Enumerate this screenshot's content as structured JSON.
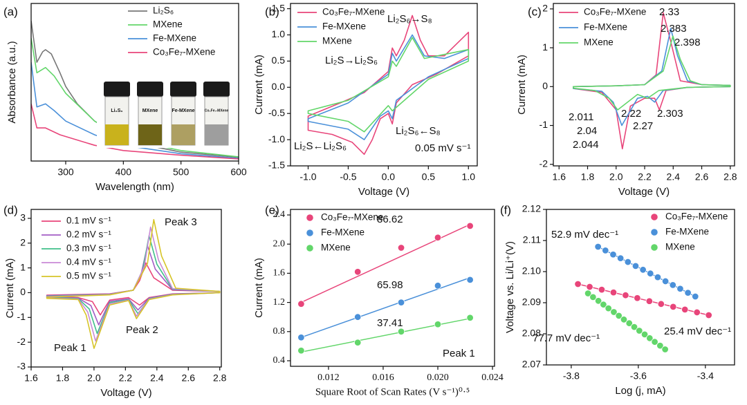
{
  "chart_data": [
    {
      "type": "line",
      "panel_label": "(a)",
      "xlabel": "Wavelength (nm)",
      "ylabel": "Absorbance (a.u.)",
      "xlim": [
        240,
        600
      ],
      "xticks": [
        300,
        400,
        500,
        600
      ],
      "ylim": [
        0,
        3
      ],
      "inset_labels": [
        "Li₂S₆",
        "MXene",
        "Fe-MXene",
        "Co₃Fe₇-MXene"
      ],
      "series": [
        {
          "name": "Li₂S₆",
          "color": "#777777",
          "x": [
            240,
            250,
            260,
            265,
            275,
            290,
            300,
            320,
            350,
            400,
            450,
            500,
            600
          ],
          "values": [
            2.67,
            1.88,
            2.08,
            2.12,
            2.04,
            1.68,
            1.42,
            1.09,
            0.76,
            0.43,
            0.28,
            0.17,
            0.07
          ]
        },
        {
          "name": "MXene",
          "color": "#62d66a",
          "x": [
            240,
            250,
            265,
            280,
            300,
            350,
            400,
            500,
            600
          ],
          "values": [
            2.34,
            1.68,
            1.78,
            1.62,
            1.29,
            0.76,
            0.43,
            0.2,
            0.08
          ]
        },
        {
          "name": "Fe-MXene",
          "color": "#4a90d9",
          "x": [
            240,
            250,
            265,
            280,
            300,
            350,
            400,
            500,
            600
          ],
          "values": [
            1.88,
            1.03,
            1.09,
            0.96,
            0.76,
            0.5,
            0.3,
            0.14,
            0.05
          ]
        },
        {
          "name": "Co₃Fe₇-MXene",
          "color": "#e8457a",
          "x": [
            240,
            250,
            265,
            290,
            350,
            400,
            500,
            600
          ],
          "values": [
            1.09,
            0.63,
            0.63,
            0.5,
            0.3,
            0.2,
            0.11,
            0.04
          ]
        }
      ]
    },
    {
      "type": "line",
      "panel_label": "(b)",
      "xlabel": "Voltage (V)",
      "ylabel": "Current (mA)",
      "xlim": [
        -1.22,
        1.11
      ],
      "xticks": [
        {
          "value": -1.0,
          "label": "-1.0"
        },
        -0.5,
        {
          "value": 0,
          "label": "0.0"
        },
        0.5,
        {
          "value": 1.0,
          "label": "1.0"
        }
      ],
      "ylim": [
        -1.5,
        1.6
      ],
      "yticks": [
        -1.5,
        {
          "value": -1.0,
          "label": "-1.0"
        },
        -0.5,
        {
          "value": 0,
          "label": "0.0"
        },
        0.5,
        {
          "value": 1.0,
          "label": "1.0"
        },
        1.5
      ],
      "annotations": [
        {
          "text": "Li₂S₆→S₈",
          "color": "#111111"
        },
        {
          "text": "Li₂S→Li₂S₆",
          "color": "#111111"
        },
        {
          "text": "Li₂S₆←S₈",
          "color": "#111111"
        },
        {
          "text": "Li₂S←Li₂S₆",
          "color": "#111111"
        },
        {
          "text": "0.05 mV s⁻¹",
          "color": "#111111"
        }
      ],
      "series": [
        {
          "name": "Co₃Fe₇-MXene",
          "color": "#e8457a",
          "x": [
            -1,
            -0.6,
            -0.3,
            0,
            0.05,
            0.1,
            0.2,
            0.3,
            0.4,
            0.5,
            0.7,
            1,
            1,
            0.6,
            0.3,
            0.1,
            0.05,
            0,
            -0.1,
            -0.2,
            -0.3,
            -0.45,
            -0.7,
            -1
          ],
          "values": [
            -0.55,
            -0.3,
            -0.1,
            0.3,
            0.75,
            0.6,
            0.9,
            1.37,
            0.9,
            0.6,
            0.6,
            1.05,
            0.6,
            0.25,
            0.05,
            -0.3,
            -0.7,
            -0.5,
            -0.6,
            -1.0,
            -1.28,
            -1.05,
            -0.9,
            -0.82
          ]
        },
        {
          "name": "Fe-MXene",
          "color": "#4a90d9",
          "x": [
            -1,
            -0.5,
            0,
            0.05,
            0.1,
            0.3,
            0.45,
            0.7,
            1,
            1,
            0.5,
            0.1,
            0.05,
            0,
            -0.1,
            -0.3,
            -0.5,
            -1
          ],
          "values": [
            -0.6,
            -0.3,
            0.25,
            0.65,
            0.5,
            1.0,
            0.6,
            0.55,
            0.72,
            0.55,
            0.2,
            -0.25,
            -0.6,
            -0.45,
            -0.55,
            -1.0,
            -0.8,
            -0.65
          ]
        },
        {
          "name": "MXene",
          "color": "#62d66a",
          "x": [
            -1,
            -0.5,
            0,
            0.05,
            0.1,
            0.3,
            0.45,
            1,
            1,
            0.5,
            0.05,
            0,
            -0.3,
            -0.5,
            -1
          ],
          "values": [
            -0.45,
            -0.25,
            0.2,
            0.5,
            0.4,
            0.95,
            0.55,
            0.72,
            0.5,
            0.15,
            -0.45,
            -0.35,
            -0.85,
            -0.65,
            -0.5
          ]
        }
      ]
    },
    {
      "type": "line",
      "panel_label": "(c)",
      "xlabel": "Voltage (V)",
      "ylabel": "Current (mA)",
      "xlim": [
        1.56,
        2.83
      ],
      "xticks": [
        1.6,
        1.8,
        {
          "value": 2.0,
          "label": "2.0"
        },
        2.2,
        2.4,
        2.6,
        2.8
      ],
      "ylim": [
        -2.04,
        2.14
      ],
      "yticks": [
        -2,
        -1,
        0,
        1,
        2
      ],
      "annotations": [
        {
          "text": "2.33",
          "color": "#e8457a"
        },
        {
          "text": "2.383",
          "color": "#4a90d9"
        },
        {
          "text": "2.398",
          "color": "#62d66a"
        },
        {
          "text": "2.011",
          "color": "#62d66a"
        },
        {
          "text": "2.22",
          "color": "#62d66a"
        },
        {
          "text": "2.303",
          "color": "#e8457a"
        },
        {
          "text": "2.04",
          "color": "#4a90d9"
        },
        {
          "text": "2.27",
          "color": "#4a90d9"
        },
        {
          "text": "2.044",
          "color": "#e8457a"
        }
      ],
      "series": [
        {
          "name": "Co₃Fe₇-MXene",
          "color": "#e8457a",
          "x": [
            1.7,
            2.0,
            2.2,
            2.28,
            2.33,
            2.38,
            2.45,
            2.6,
            2.8,
            2.8,
            2.5,
            2.35,
            2.303,
            2.27,
            2.2,
            2.1,
            2.044,
            2.0,
            1.9,
            1.7
          ],
          "values": [
            0,
            0.02,
            0.05,
            0.3,
            1.9,
            1.2,
            0.15,
            0.05,
            0.03,
            0,
            -0.02,
            -0.1,
            -0.6,
            -0.3,
            -0.3,
            -0.5,
            -1.6,
            -0.6,
            -0.15,
            -0.05
          ]
        },
        {
          "name": "Fe-MXene",
          "color": "#4a90d9",
          "x": [
            1.7,
            2.0,
            2.2,
            2.32,
            2.383,
            2.43,
            2.5,
            2.6,
            2.8,
            2.8,
            2.5,
            2.33,
            2.27,
            2.22,
            2.15,
            2.04,
            1.98,
            1.9,
            1.7
          ],
          "values": [
            0,
            0.02,
            0.05,
            0.4,
            1.5,
            0.8,
            0.15,
            0.05,
            0.03,
            0,
            -0.02,
            -0.1,
            -0.4,
            -0.25,
            -0.3,
            -1.0,
            -0.4,
            -0.12,
            -0.05
          ]
        },
        {
          "name": "MXene",
          "color": "#62d66a",
          "x": [
            1.7,
            2.0,
            2.2,
            2.33,
            2.398,
            2.45,
            2.52,
            2.6,
            2.8,
            2.8,
            2.5,
            2.3,
            2.22,
            2.15,
            2.011,
            1.95,
            1.85,
            1.7
          ],
          "values": [
            0,
            0.02,
            0.05,
            0.4,
            1.3,
            0.7,
            0.15,
            0.05,
            0.03,
            0,
            -0.02,
            -0.1,
            -0.3,
            -0.2,
            -0.6,
            -0.3,
            -0.1,
            -0.04
          ]
        }
      ]
    },
    {
      "type": "line",
      "panel_label": "(d)",
      "xlabel": "Voltage (V)",
      "ylabel": "Current (mA)",
      "xlim": [
        1.6,
        2.81
      ],
      "xticks": [
        1.6,
        1.8,
        {
          "value": 2.0,
          "label": "2.0"
        },
        2.2,
        2.4,
        2.6,
        2.8
      ],
      "ylim": [
        -3,
        3.36
      ],
      "yticks": [
        -3,
        -2,
        -1,
        0,
        1,
        2,
        3
      ],
      "annotations": [
        {
          "text": "Peak 3",
          "color": "#111111"
        },
        {
          "text": "Peak 2",
          "color": "#111111"
        },
        {
          "text": "Peak 1",
          "color": "#111111"
        }
      ],
      "series": [
        {
          "name": "0.1 mV s⁻¹",
          "color": "#e8457a",
          "x": [
            1.7,
            2.1,
            2.25,
            2.29,
            2.33,
            2.38,
            2.5,
            2.8,
            2.8,
            2.5,
            2.35,
            2.29,
            2.22,
            2.1,
            2.04,
            1.99,
            1.9,
            1.7
          ],
          "values": [
            -0.1,
            -0.05,
            0.1,
            0.48,
            1.2,
            0.6,
            0.1,
            0.05,
            0,
            -0.05,
            -0.2,
            -0.5,
            -0.2,
            -0.3,
            -0.9,
            -0.36,
            -0.2,
            -0.15
          ]
        },
        {
          "name": "0.2 mV s⁻¹",
          "color": "#a25bc4",
          "x": [
            1.7,
            2.1,
            2.25,
            2.3,
            2.34,
            2.39,
            2.5,
            2.8,
            2.8,
            2.5,
            2.35,
            2.28,
            2.22,
            2.1,
            2.03,
            1.98,
            1.9,
            1.7
          ],
          "values": [
            -0.12,
            -0.06,
            0.1,
            0.76,
            1.9,
            0.95,
            0.12,
            0.05,
            0,
            -0.06,
            -0.22,
            -0.7,
            -0.25,
            -0.35,
            -1.3,
            -0.52,
            -0.22,
            -0.17
          ]
        },
        {
          "name": "0.3 mV s⁻¹",
          "color": "#3fbf8a",
          "x": [
            1.7,
            2.1,
            2.25,
            2.31,
            2.35,
            2.4,
            2.5,
            2.8,
            2.8,
            2.5,
            2.35,
            2.28,
            2.22,
            2.1,
            2.02,
            1.97,
            1.9,
            1.7
          ],
          "values": [
            -0.14,
            -0.07,
            0.1,
            0.92,
            2.3,
            1.15,
            0.14,
            0.05,
            0,
            -0.07,
            -0.24,
            -0.85,
            -0.28,
            -0.4,
            -1.65,
            -0.66,
            -0.24,
            -0.19
          ]
        },
        {
          "name": "0.4 mV s⁻¹",
          "color": "#c98ad6",
          "x": [
            1.7,
            2.1,
            2.25,
            2.32,
            2.36,
            2.41,
            2.5,
            2.8,
            2.8,
            2.5,
            2.35,
            2.27,
            2.22,
            2.1,
            2.01,
            1.96,
            1.9,
            1.7
          ],
          "values": [
            -0.16,
            -0.08,
            0.1,
            1.06,
            2.65,
            1.32,
            0.16,
            0.05,
            0,
            -0.08,
            -0.26,
            -0.95,
            -0.3,
            -0.45,
            -1.95,
            -0.78,
            -0.26,
            -0.21
          ]
        },
        {
          "name": "0.5 mV s⁻¹",
          "color": "#d6c428",
          "x": [
            1.7,
            2.1,
            2.25,
            2.34,
            2.38,
            2.43,
            2.52,
            2.8,
            2.8,
            2.5,
            2.35,
            2.27,
            2.22,
            2.1,
            2.0,
            1.95,
            1.9,
            1.7
          ],
          "values": [
            -0.18,
            -0.09,
            0.1,
            1.18,
            2.95,
            1.48,
            0.18,
            0.05,
            0,
            -0.09,
            -0.28,
            -1.05,
            -0.32,
            -0.5,
            -2.25,
            -0.9,
            -0.28,
            -0.23
          ]
        }
      ]
    },
    {
      "type": "scatter",
      "panel_label": "(e)",
      "xlabel": "Square Root of Scan Rates (V s⁻¹)⁰·⁵",
      "ylabel": "Current (mA)",
      "xlim": [
        0.00922,
        0.02415
      ],
      "xticks": [
        0.012,
        0.016,
        {
          "value": 0.02,
          "label": "0.020"
        },
        0.024
      ],
      "ylim": [
        0.324,
        2.476
      ],
      "yticks": [
        0.4,
        0.8,
        1.2,
        1.6,
        {
          "value": 2.0,
          "label": "2.0"
        },
        2.4
      ],
      "x": [
        0.01,
        0.01414,
        0.01732,
        0.02,
        0.02236
      ],
      "fit_x": [
        0.01,
        0.02236
      ],
      "annotations": [
        {
          "text": "86.62",
          "color": "#e8457a"
        },
        {
          "text": "65.98",
          "color": "#4a90d9"
        },
        {
          "text": "37.41",
          "color": "#62d66a"
        },
        {
          "text": "Peak 1",
          "color": "#111111"
        }
      ],
      "series": [
        {
          "name": "Co₃Fe₇-MXene",
          "color": "#e8457a",
          "values": [
            1.18,
            1.62,
            1.95,
            2.09,
            2.25
          ],
          "fit": [
            1.2,
            2.27
          ]
        },
        {
          "name": "Fe-MXene",
          "color": "#4a90d9",
          "values": [
            0.72,
            1.0,
            1.2,
            1.43,
            1.51
          ],
          "fit": [
            0.72,
            1.54
          ]
        },
        {
          "name": "MXene",
          "color": "#62d66a",
          "values": [
            0.54,
            0.65,
            0.8,
            0.9,
            0.99
          ],
          "fit": [
            0.52,
            0.98
          ]
        }
      ]
    },
    {
      "type": "scatter",
      "panel_label": "(f)",
      "xlabel": "Log (j, mA)",
      "ylabel": "Voltage vs. Li/Li⁺(V)",
      "xlim": [
        -3.874,
        -3.313
      ],
      "xticks": [
        -3.8,
        -3.6,
        -3.4
      ],
      "ylim": [
        2.07,
        2.12
      ],
      "yticks": [
        2.07,
        2.08,
        2.09,
        {
          "value": 2.1,
          "label": "2.10"
        },
        2.11,
        2.12
      ],
      "annotations": [
        {
          "text": "52.9 mV dec⁻¹",
          "color": "#4a90d9"
        },
        {
          "text": "25.4 mV dec⁻¹",
          "color": "#e8457a"
        },
        {
          "text": "77.7 mV dec⁻¹",
          "color": "#62d66a"
        }
      ],
      "series": [
        {
          "name": "Co₃Fe₇-MXene",
          "color": "#e8457a",
          "x": [
            -3.78,
            -3.745,
            -3.709,
            -3.674,
            -3.638,
            -3.603,
            -3.567,
            -3.532,
            -3.496,
            -3.461,
            -3.425,
            -3.39
          ],
          "values": [
            2.096,
            2.0951,
            2.0942,
            2.0933,
            2.0924,
            2.0915,
            2.0905,
            2.0896,
            2.0887,
            2.0878,
            2.0869,
            2.086
          ]
        },
        {
          "name": "Fe-MXene",
          "color": "#4a90d9",
          "x": [
            -3.72,
            -3.698,
            -3.675,
            -3.653,
            -3.631,
            -3.608,
            -3.586,
            -3.564,
            -3.542,
            -3.519,
            -3.497,
            -3.475,
            -3.452,
            -3.43
          ],
          "values": [
            2.108,
            2.1068,
            2.1055,
            2.1043,
            2.1031,
            2.1018,
            2.1006,
            2.0994,
            2.0982,
            2.0969,
            2.0957,
            2.0945,
            2.0932,
            2.092
          ]
        },
        {
          "name": "MXene",
          "color": "#62d66a",
          "x": [
            -3.75,
            -3.735,
            -3.719,
            -3.704,
            -3.689,
            -3.673,
            -3.658,
            -3.643,
            -3.627,
            -3.612,
            -3.597,
            -3.581,
            -3.566,
            -3.551,
            -3.535,
            -3.52
          ],
          "values": [
            2.093,
            2.0918,
            2.0906,
            2.0894,
            2.0882,
            2.087,
            2.0858,
            2.0846,
            2.0834,
            2.0822,
            2.081,
            2.0798,
            2.0786,
            2.0774,
            2.0762,
            2.075
          ]
        }
      ]
    }
  ]
}
